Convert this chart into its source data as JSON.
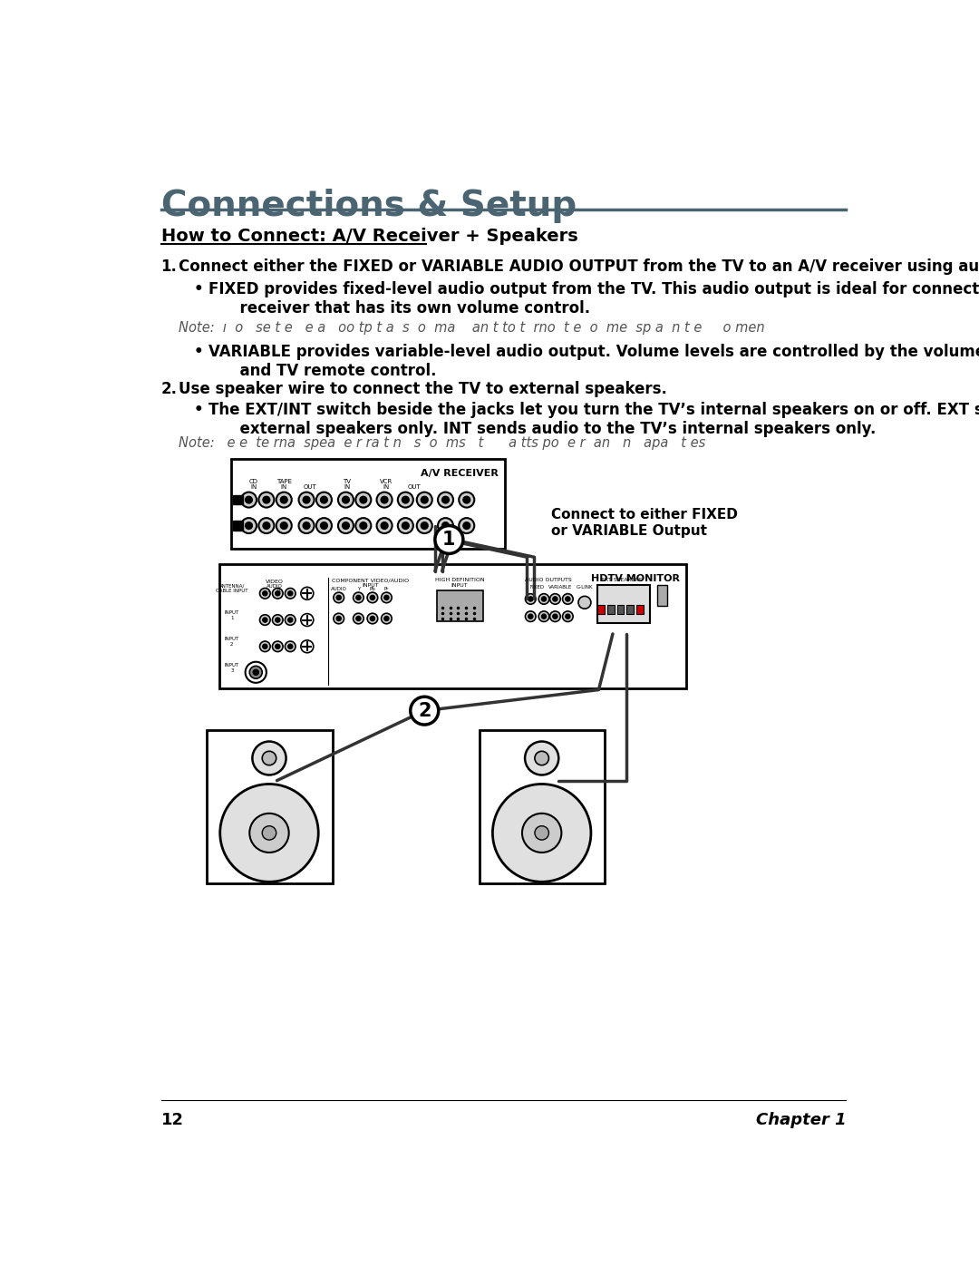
{
  "page_title": "Connections & Setup",
  "section_title": "How to Connect: A/V Receiver + Speakers",
  "step1_text": "Connect either the FIXED or VARIABLE AUDIO OUTPUT from the TV to an A/V receiver using audio cables.",
  "note1": "Note:  ı  o   se t e   e a   oo tp t a  s  o  ma    an t to t  rno  t e  o  me  sp a  n t e     o men",
  "note2": "Note:   e e  te rna  spea  e r ra t n   s  o  ms   t      a tts po  e r  an   n   apa   t es",
  "label1": "Connect to either FIXED\nor VARIABLE Output",
  "receiver_label": "A/V RECEIVER",
  "monitor_label": "HDTV MONITOR",
  "page_num": "12",
  "chapter": "Chapter 1",
  "bg_color": "#ffffff",
  "title_color": "#4a6471",
  "text_color": "#000000"
}
